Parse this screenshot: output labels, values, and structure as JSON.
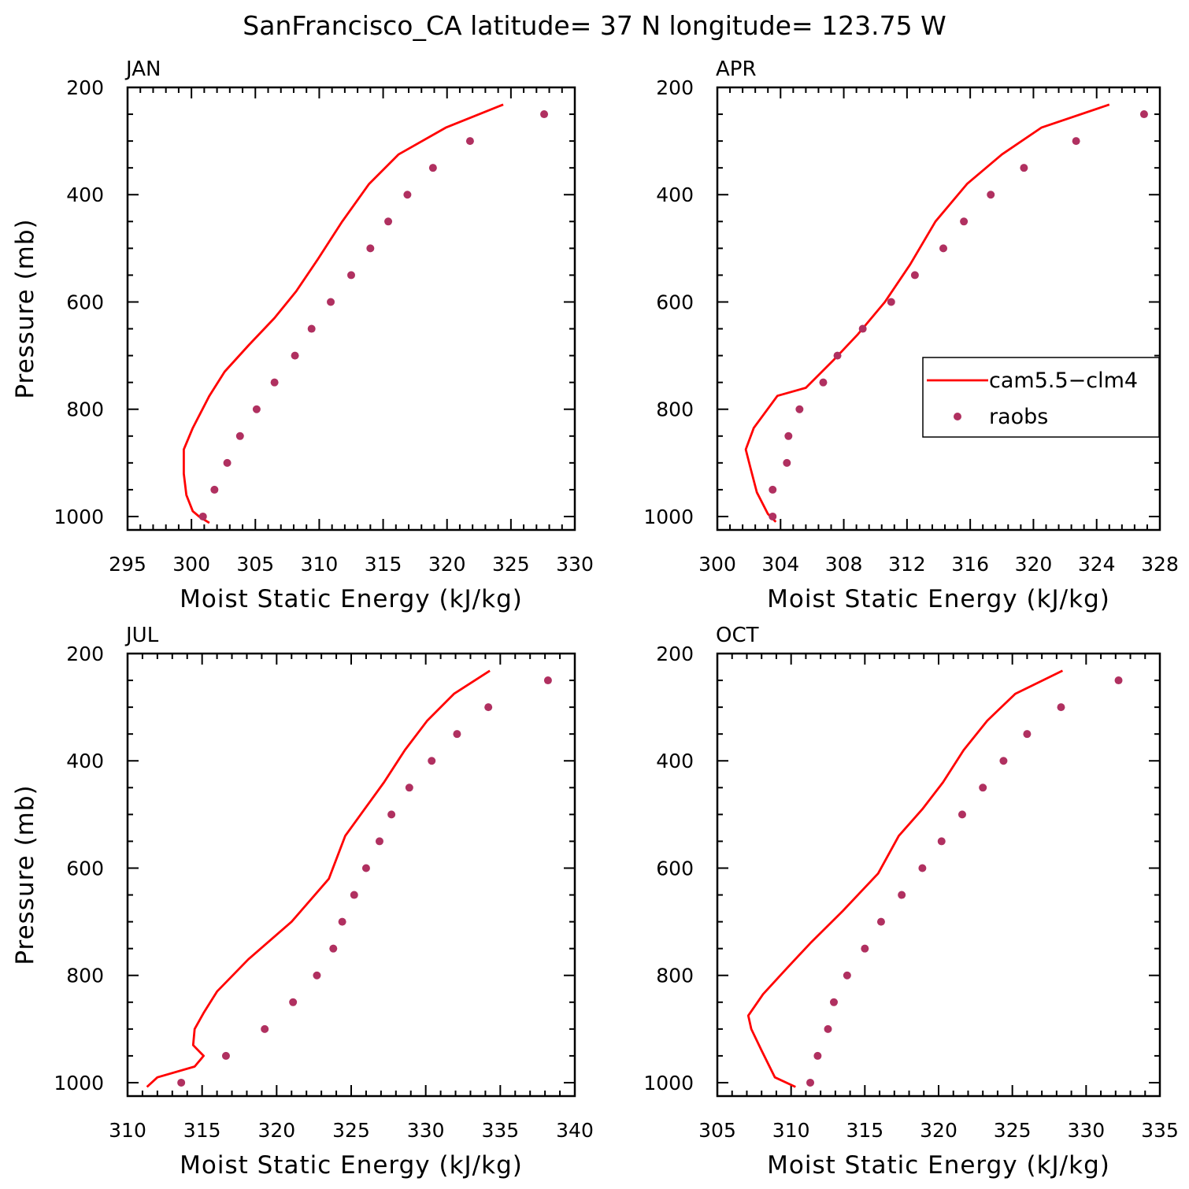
{
  "title": "SanFrancisco_CA  latitude= 37 N longitude= 123.75 W",
  "colors": {
    "model": "#ff0000",
    "obs": "#b03060"
  },
  "legend": {
    "entries": [
      {
        "label": "cam5.5−clm4",
        "style": "line",
        "color": "#ff0000"
      },
      {
        "label": "raobs",
        "style": "dot",
        "color": "#b03060"
      }
    ],
    "placement": "right (APR panel)"
  },
  "chart_data": [
    {
      "type": "line",
      "panel": "JAN",
      "xlabel": "Moist Static Energy (kJ/kg)",
      "ylabel": "Pressure (mb)",
      "xlim": [
        295,
        330
      ],
      "ylim": [
        1025,
        200
      ],
      "y_reversed": true,
      "xticks": [
        "295",
        "300",
        "305",
        "310",
        "315",
        "320",
        "325",
        "330"
      ],
      "yticks": [
        "200",
        "400",
        "600",
        "800",
        "1000"
      ],
      "series": [
        {
          "name": "cam5.5−clm4",
          "style": "line",
          "color": "#ff0000",
          "x": [
            324.4,
            319.9,
            316.2,
            313.9,
            311.8,
            309.9,
            308.2,
            306.5,
            304.5,
            302.6,
            301.4,
            300.1,
            299.4,
            299.4,
            299.6,
            300.1,
            300.6,
            301.4
          ],
          "y": [
            232,
            275,
            325,
            380,
            450,
            520,
            580,
            630,
            680,
            730,
            775,
            835,
            875,
            920,
            960,
            990,
            1000,
            1012
          ]
        },
        {
          "name": "raobs",
          "style": "dot",
          "color": "#b03060",
          "x": [
            327.6,
            321.8,
            318.9,
            316.9,
            315.4,
            314.0,
            312.5,
            310.9,
            309.4,
            308.1,
            306.5,
            305.1,
            303.8,
            302.8,
            301.8,
            300.9
          ],
          "y": [
            250,
            300,
            350,
            400,
            450,
            500,
            550,
            600,
            650,
            700,
            750,
            800,
            850,
            900,
            950,
            1000
          ]
        }
      ]
    },
    {
      "type": "line",
      "panel": "APR",
      "xlabel": "Moist Static Energy (kJ/kg)",
      "ylabel": "",
      "xlim": [
        300,
        328
      ],
      "ylim": [
        1025,
        200
      ],
      "y_reversed": true,
      "xticks": [
        "300",
        "304",
        "308",
        "312",
        "316",
        "320",
        "324",
        "328"
      ],
      "yticks": [
        "200",
        "400",
        "600",
        "800",
        "1000"
      ],
      "series": [
        {
          "name": "cam5.5−clm4",
          "style": "line",
          "color": "#ff0000",
          "x": [
            324.8,
            320.5,
            318.0,
            315.8,
            313.8,
            312.2,
            310.6,
            308.9,
            307.3,
            305.6,
            303.8,
            302.3,
            301.8,
            302.1,
            302.5,
            303.2,
            303.7
          ],
          "y": [
            232,
            275,
            325,
            380,
            450,
            530,
            600,
            660,
            710,
            760,
            775,
            835,
            875,
            910,
            955,
            995,
            1010
          ]
        },
        {
          "name": "raobs",
          "style": "dot",
          "color": "#b03060",
          "x": [
            327.0,
            322.7,
            319.4,
            317.3,
            315.6,
            314.3,
            312.5,
            311.0,
            309.2,
            307.6,
            306.7,
            305.2,
            304.5,
            304.4,
            303.5,
            303.5
          ],
          "y": [
            250,
            300,
            350,
            400,
            450,
            500,
            550,
            600,
            650,
            700,
            750,
            800,
            850,
            900,
            950,
            1000
          ]
        }
      ]
    },
    {
      "type": "line",
      "panel": "JUL",
      "xlabel": "Moist Static Energy (kJ/kg)",
      "ylabel": "Pressure (mb)",
      "xlim": [
        310,
        340
      ],
      "ylim": [
        1025,
        200
      ],
      "y_reversed": true,
      "xticks": [
        "310",
        "315",
        "320",
        "325",
        "330",
        "335",
        "340"
      ],
      "yticks": [
        "200",
        "400",
        "600",
        "800",
        "1000"
      ],
      "series": [
        {
          "name": "cam5.5−clm4",
          "style": "line",
          "color": "#ff0000",
          "x": [
            334.3,
            331.9,
            330.1,
            328.6,
            327.2,
            325.9,
            324.6,
            323.5,
            321.0,
            318.1,
            316.0,
            315.1,
            314.5,
            314.4,
            315.1,
            314.5,
            312.0,
            311.3
          ],
          "y": [
            232,
            275,
            325,
            380,
            440,
            490,
            540,
            620,
            700,
            770,
            830,
            870,
            900,
            930,
            950,
            970,
            990,
            1008
          ]
        },
        {
          "name": "raobs",
          "style": "dot",
          "color": "#b03060",
          "x": [
            338.2,
            334.2,
            332.1,
            330.4,
            328.9,
            327.7,
            326.9,
            326.0,
            325.2,
            324.4,
            323.8,
            322.7,
            321.1,
            319.2,
            316.6,
            313.6
          ],
          "y": [
            250,
            300,
            350,
            400,
            450,
            500,
            550,
            600,
            650,
            700,
            750,
            800,
            850,
            900,
            950,
            1000
          ]
        }
      ]
    },
    {
      "type": "line",
      "panel": "OCT",
      "xlabel": "Moist Static Energy (kJ/kg)",
      "ylabel": "",
      "xlim": [
        305,
        335
      ],
      "ylim": [
        1025,
        200
      ],
      "y_reversed": true,
      "xticks": [
        "305",
        "310",
        "315",
        "320",
        "325",
        "330",
        "335"
      ],
      "yticks": [
        "200",
        "400",
        "600",
        "800",
        "1000"
      ],
      "series": [
        {
          "name": "cam5.5−clm4",
          "style": "line",
          "color": "#ff0000",
          "x": [
            328.4,
            325.2,
            323.3,
            321.7,
            320.3,
            318.9,
            317.3,
            315.9,
            313.5,
            311.3,
            309.6,
            308.1,
            307.1,
            307.3,
            308.0,
            308.9,
            310.3
          ],
          "y": [
            232,
            275,
            325,
            380,
            440,
            490,
            540,
            610,
            680,
            740,
            790,
            835,
            875,
            900,
            940,
            990,
            1008
          ]
        },
        {
          "name": "raobs",
          "style": "dot",
          "color": "#b03060",
          "x": [
            332.2,
            328.3,
            326.0,
            324.4,
            323.0,
            321.6,
            320.2,
            318.9,
            317.5,
            316.1,
            315.0,
            313.8,
            312.9,
            312.5,
            311.8,
            311.3
          ],
          "y": [
            250,
            300,
            350,
            400,
            450,
            500,
            550,
            600,
            650,
            700,
            750,
            800,
            850,
            900,
            950,
            1000
          ]
        }
      ]
    }
  ]
}
